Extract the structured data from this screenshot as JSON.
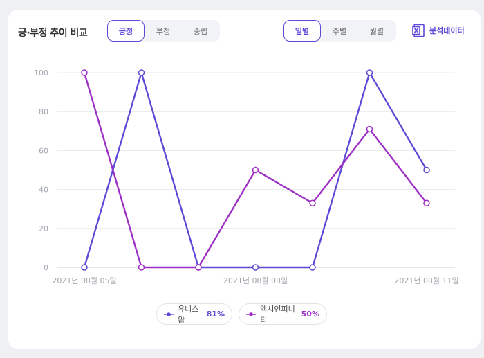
{
  "header": {
    "title": "긍·부정 추이 비교",
    "sentiment_tabs": [
      {
        "label": "긍정",
        "active": true
      },
      {
        "label": "부정",
        "active": false
      },
      {
        "label": "중립",
        "active": false
      }
    ],
    "period_tabs": [
      {
        "label": "일별",
        "active": true
      },
      {
        "label": "주별",
        "active": false
      },
      {
        "label": "월별",
        "active": false
      }
    ],
    "export_label": "분석데이터",
    "export_icon": "excel-icon"
  },
  "legend": [
    {
      "name": "유니스왑",
      "value": "81%",
      "color": "#5a4ad6"
    },
    {
      "name": "엑시인피니티",
      "value": "50%",
      "color": "#9d30c4"
    }
  ],
  "chart_data": {
    "type": "line",
    "x_tick_labels": [
      "2021년 08월 05일",
      "2021년 08월 08일",
      "2021년 08월 11일"
    ],
    "x_tick_indices": [
      0,
      3,
      6
    ],
    "point_count": 7,
    "ylim": [
      0,
      100
    ],
    "y_ticks": [
      0,
      20,
      40,
      60,
      80,
      100
    ],
    "grid": true,
    "legend_position": "bottom",
    "series": [
      {
        "name": "유니스왑",
        "color": "#5a4ad6",
        "values": [
          0,
          100,
          0,
          0,
          0,
          100,
          50
        ]
      },
      {
        "name": "엑시인피니티",
        "color": "#9d30c4",
        "values": [
          100,
          0,
          0,
          50,
          33,
          71,
          33
        ]
      }
    ]
  }
}
